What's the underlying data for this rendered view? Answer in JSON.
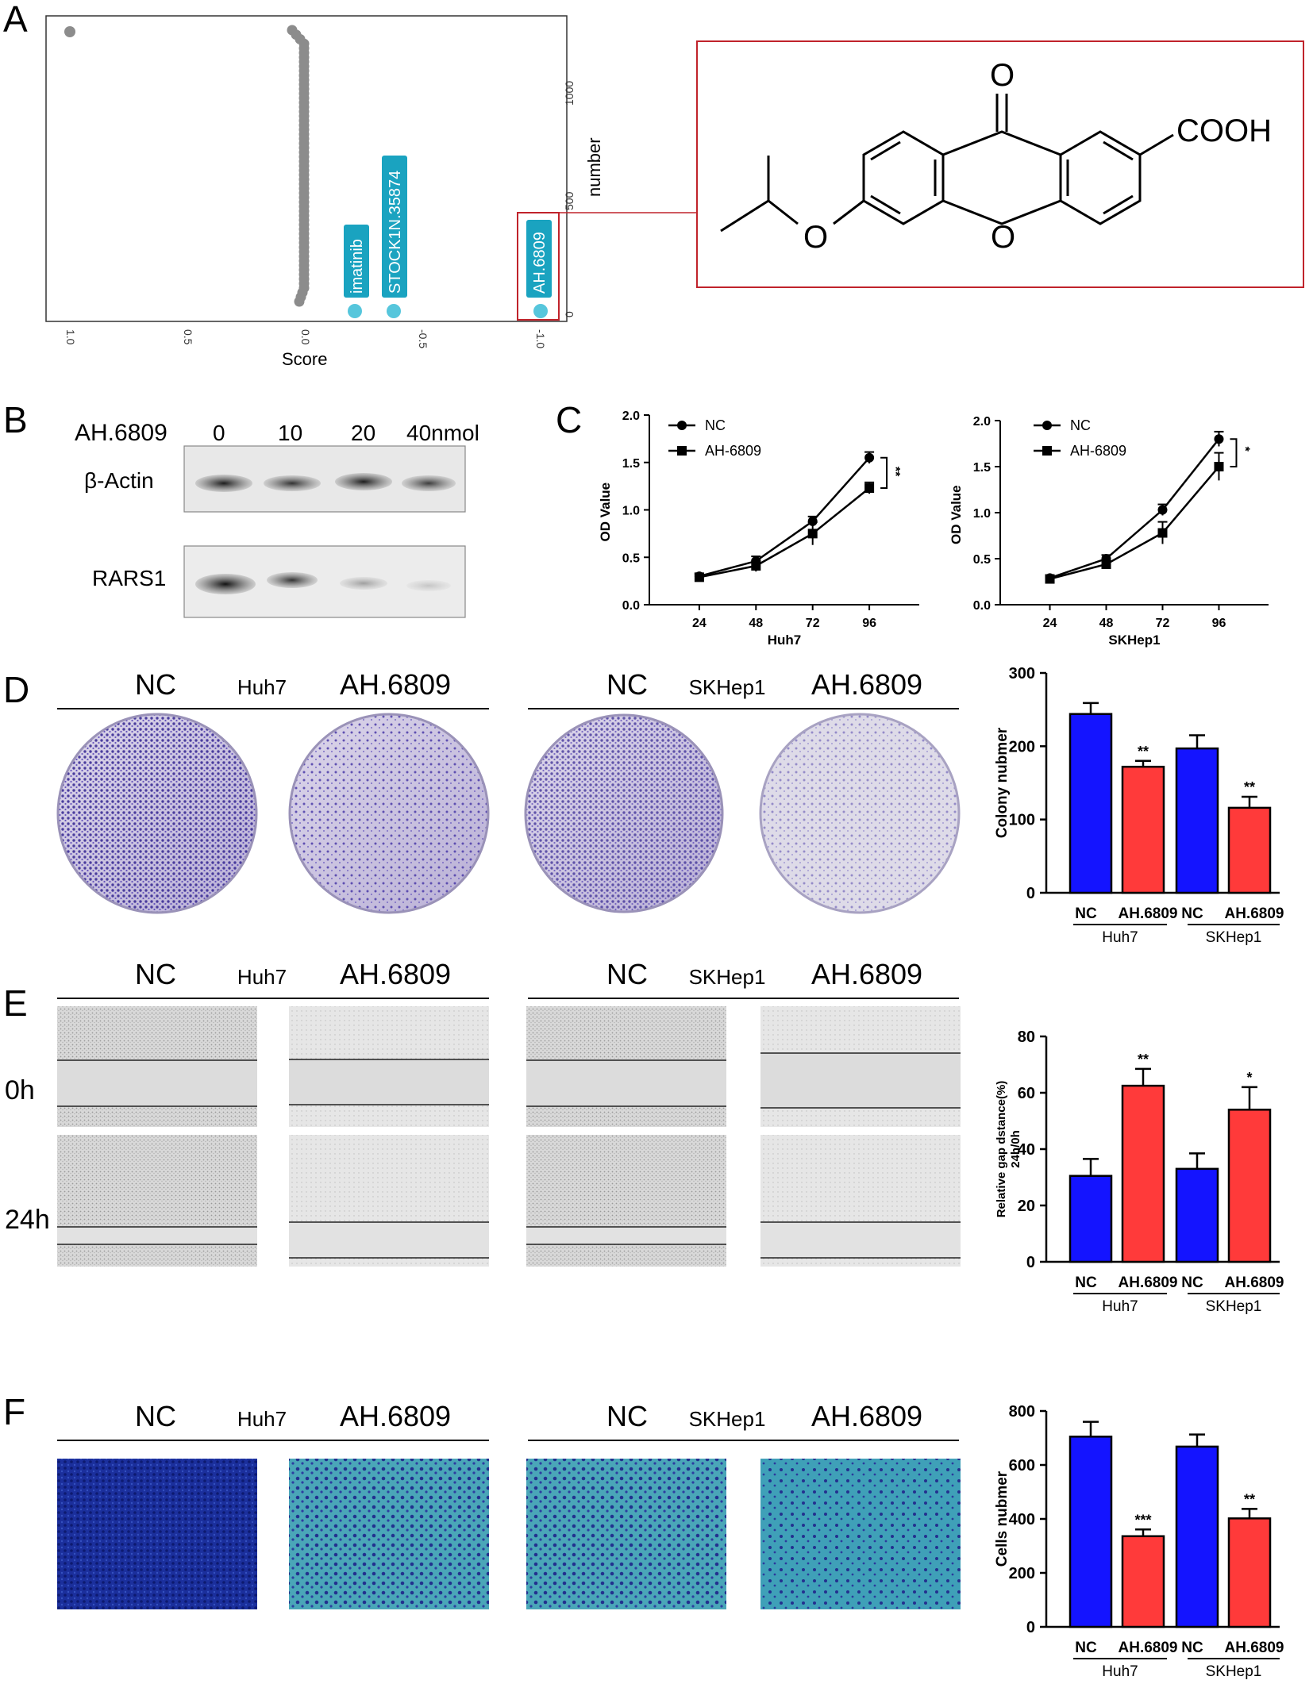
{
  "panel_labels": {
    "A": "A",
    "B": "B",
    "C": "C",
    "D": "D",
    "E": "E",
    "F": "F"
  },
  "colors": {
    "teal": "#1aa3c0",
    "teal_dot": "#56c6dc",
    "gray": "#8c8c8c",
    "blue": "#1414ff",
    "red": "#ff3a3a",
    "frame": "#c0232b"
  },
  "panel_a": {
    "xlabel": "Score",
    "ylabel": "number",
    "x_ticks": [
      "1.0",
      "0.5",
      "0.0",
      "-0.5",
      "-1.0"
    ],
    "y_ticks": [
      "0",
      "500",
      "1000"
    ],
    "labels": [
      "imatinib",
      "STOCK1N.35874",
      "AH.6809"
    ],
    "structure": {
      "top_o": "O",
      "ring_o": "O",
      "ether_o": "O",
      "acid": "COOH"
    }
  },
  "panel_b": {
    "treatment": "AH.6809",
    "doses": [
      "0",
      "10",
      "20",
      "40nmol"
    ],
    "rows": [
      "β-Actin",
      "RARS1"
    ]
  },
  "panel_c": {
    "ylabel": "OD Value",
    "y_ticks": [
      "0.0",
      "0.5",
      "1.0",
      "1.5",
      "2.0"
    ],
    "x_ticks": [
      "24",
      "48",
      "72",
      "96"
    ],
    "legend": [
      "NC",
      "AH-6809"
    ],
    "plots": [
      {
        "xlabel": "Huh7",
        "sig": "**"
      },
      {
        "xlabel": "SKHep1",
        "sig": "*"
      }
    ]
  },
  "headers": {
    "nc": "NC",
    "drug": "AH.6809",
    "cell1": "Huh7",
    "cell2": "SKHep1"
  },
  "panel_e": {
    "rows": [
      "0h",
      "24h"
    ]
  },
  "bar_charts": {
    "tick_nc": "NC",
    "tick_drug": "AH.6809",
    "group1": "Huh7",
    "group2": "SKHep1",
    "d": {
      "ylabel": "Colony nubmer",
      "y_ticks": [
        "0",
        "100",
        "200",
        "300"
      ]
    },
    "e": {
      "ylabel1": "Relative gap dstance(%)",
      "ylabel2": "24h/0h",
      "y_ticks": [
        "0",
        "20",
        "40",
        "60",
        "80"
      ]
    },
    "f": {
      "ylabel": "Cells nubmer",
      "y_ticks": [
        "0",
        "200",
        "400",
        "600",
        "800"
      ]
    }
  },
  "chart_data": [
    {
      "type": "scatter",
      "xlabel": "Score",
      "ylabel": "number",
      "xlim": [
        1.0,
        -1.0
      ],
      "ylim": [
        0,
        1250
      ],
      "points": [
        {
          "label": "imatinib",
          "x": -0.2,
          "y": 0
        },
        {
          "label": "STOCK1N.35874",
          "x": -0.36,
          "y": 0
        },
        {
          "label": "AH.6809",
          "x": -1.0,
          "y": 0
        }
      ]
    },
    {
      "type": "line",
      "xlabel": "Huh7",
      "ylabel": "OD Value",
      "x": [
        24,
        48,
        72,
        96
      ],
      "ylim": [
        0,
        2.0
      ],
      "series": [
        {
          "name": "NC",
          "values": [
            0.3,
            0.46,
            0.88,
            1.55
          ],
          "errors": [
            0.03,
            0.05,
            0.05,
            0.06
          ]
        },
        {
          "name": "AH-6809",
          "values": [
            0.29,
            0.41,
            0.75,
            1.23
          ],
          "errors": [
            0.03,
            0.06,
            0.12,
            0.06
          ]
        }
      ],
      "annotations": [
        "**"
      ]
    },
    {
      "type": "line",
      "xlabel": "SKHep1",
      "ylabel": "OD Value",
      "x": [
        24,
        48,
        72,
        96
      ],
      "ylim": [
        0,
        2.0
      ],
      "series": [
        {
          "name": "NC",
          "values": [
            0.29,
            0.5,
            1.03,
            1.8
          ],
          "errors": [
            0.02,
            0.04,
            0.06,
            0.08
          ]
        },
        {
          "name": "AH-6809",
          "values": [
            0.28,
            0.44,
            0.78,
            1.5
          ],
          "errors": [
            0.02,
            0.04,
            0.12,
            0.15
          ]
        }
      ],
      "annotations": [
        "*"
      ]
    },
    {
      "type": "bar",
      "ylabel": "Colony nubmer",
      "ylim": [
        0,
        300
      ],
      "categories": [
        "NC",
        "AH.6809",
        "NC",
        "AH.6809"
      ],
      "groups": [
        "Huh7",
        "SKHep1"
      ],
      "values": [
        244,
        172,
        197,
        116
      ],
      "errors": [
        15,
        8,
        18,
        15
      ],
      "annotations": [
        "",
        "**",
        "",
        "**"
      ]
    },
    {
      "type": "bar",
      "ylabel": "Relative gap dstance(%) 24h/0h",
      "ylim": [
        0,
        80
      ],
      "categories": [
        "NC",
        "AH.6809",
        "NC",
        "AH.6809"
      ],
      "groups": [
        "Huh7",
        "SKHep1"
      ],
      "values": [
        30.5,
        62.5,
        33,
        54
      ],
      "errors": [
        6,
        6,
        5.5,
        8
      ],
      "annotations": [
        "",
        "**",
        "",
        "*"
      ]
    },
    {
      "type": "bar",
      "ylabel": "Cells nubmer",
      "ylim": [
        0,
        800
      ],
      "categories": [
        "NC",
        "AH.6809",
        "NC",
        "AH.6809"
      ],
      "groups": [
        "Huh7",
        "SKHep1"
      ],
      "values": [
        705,
        336,
        668,
        402
      ],
      "errors": [
        55,
        25,
        45,
        35
      ],
      "annotations": [
        "",
        "***",
        "",
        "**"
      ]
    }
  ]
}
